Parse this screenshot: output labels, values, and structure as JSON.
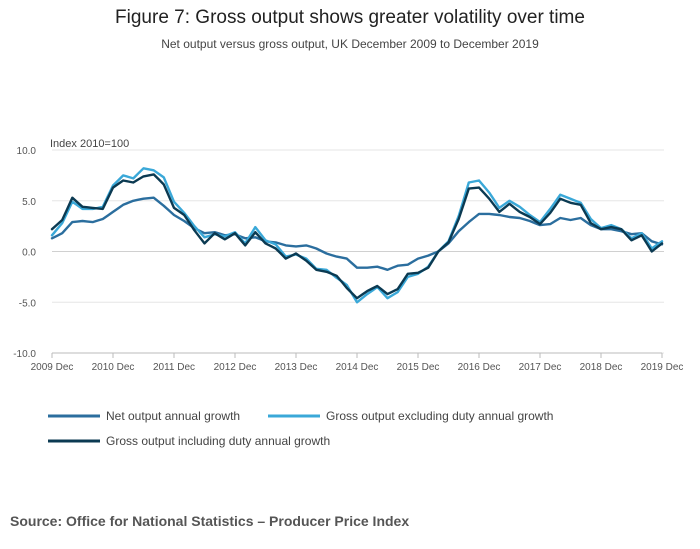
{
  "chart_data": {
    "type": "line",
    "title": "Figure 7: Gross output shows greater volatility over time",
    "subtitle": "Net output versus gross output, UK December 2009 to December 2019",
    "ylabel": "Index 2010=100",
    "ylim": [
      -10,
      10
    ],
    "yticks": [
      "10.0",
      "5.0",
      "0.0",
      "-5.0",
      "-10.0"
    ],
    "ytick_values": [
      10,
      5,
      0,
      -5,
      -10
    ],
    "x_start": "2009 Dec",
    "x_end": "2019 Dec",
    "x_unit": "month",
    "x_ticks": [
      "2009 Dec",
      "2010 Dec",
      "2011 Dec",
      "2012 Dec",
      "2013 Dec",
      "2014 Dec",
      "2015 Dec",
      "2016 Dec",
      "2017 Dec",
      "2018 Dec",
      "2019 Dec"
    ],
    "legend_position": "bottom",
    "series": [
      {
        "name": "Net output annual growth",
        "color": "#2b6e9e",
        "anchors": [
          [
            "2009 Dec",
            1.3
          ],
          [
            "2010 Feb",
            1.8
          ],
          [
            "2010 Apr",
            2.9
          ],
          [
            "2010 Jun",
            3.0
          ],
          [
            "2010 Aug",
            2.9
          ],
          [
            "2010 Oct",
            3.2
          ],
          [
            "2010 Dec",
            3.9
          ],
          [
            "2011 Feb",
            4.6
          ],
          [
            "2011 Apr",
            5.0
          ],
          [
            "2011 Jun",
            5.2
          ],
          [
            "2011 Aug",
            5.3
          ],
          [
            "2011 Oct",
            4.5
          ],
          [
            "2011 Dec",
            3.6
          ],
          [
            "2012 Feb",
            3.0
          ],
          [
            "2012 Apr",
            2.3
          ],
          [
            "2012 Jun",
            1.8
          ],
          [
            "2012 Aug",
            1.9
          ],
          [
            "2012 Oct",
            1.6
          ],
          [
            "2012 Dec",
            1.7
          ],
          [
            "2013 Feb",
            1.3
          ],
          [
            "2013 Apr",
            1.4
          ],
          [
            "2013 Jun",
            1.0
          ],
          [
            "2013 Aug",
            0.9
          ],
          [
            "2013 Oct",
            0.6
          ],
          [
            "2013 Dec",
            0.5
          ],
          [
            "2014 Feb",
            0.6
          ],
          [
            "2014 Apr",
            0.3
          ],
          [
            "2014 Jun",
            -0.2
          ],
          [
            "2014 Aug",
            -0.5
          ],
          [
            "2014 Oct",
            -0.7
          ],
          [
            "2014 Dec",
            -1.6
          ],
          [
            "2015 Feb",
            -1.6
          ],
          [
            "2015 Apr",
            -1.5
          ],
          [
            "2015 Jun",
            -1.8
          ],
          [
            "2015 Aug",
            -1.4
          ],
          [
            "2015 Oct",
            -1.3
          ],
          [
            "2015 Dec",
            -0.7
          ],
          [
            "2016 Feb",
            -0.4
          ],
          [
            "2016 Apr",
            0.0
          ],
          [
            "2016 Jun",
            0.8
          ],
          [
            "2016 Aug",
            2.0
          ],
          [
            "2016 Oct",
            2.9
          ],
          [
            "2016 Dec",
            3.7
          ],
          [
            "2017 Feb",
            3.7
          ],
          [
            "2017 Apr",
            3.6
          ],
          [
            "2017 Jun",
            3.4
          ],
          [
            "2017 Aug",
            3.3
          ],
          [
            "2017 Oct",
            3.0
          ],
          [
            "2017 Dec",
            2.6
          ],
          [
            "2018 Feb",
            2.7
          ],
          [
            "2018 Apr",
            3.3
          ],
          [
            "2018 Jun",
            3.1
          ],
          [
            "2018 Aug",
            3.3
          ],
          [
            "2018 Oct",
            2.6
          ],
          [
            "2018 Dec",
            2.2
          ],
          [
            "2019 Feb",
            2.2
          ],
          [
            "2019 Apr",
            2.0
          ],
          [
            "2019 Jun",
            1.7
          ],
          [
            "2019 Aug",
            1.8
          ],
          [
            "2019 Oct",
            1.0
          ],
          [
            "2019 Dec",
            0.7
          ]
        ]
      },
      {
        "name": "Gross output excluding duty annual growth",
        "color": "#3aa8d8",
        "anchors": [
          [
            "2009 Dec",
            1.6
          ],
          [
            "2010 Feb",
            2.8
          ],
          [
            "2010 Apr",
            4.9
          ],
          [
            "2010 Jun",
            4.2
          ],
          [
            "2010 Aug",
            4.2
          ],
          [
            "2010 Oct",
            4.4
          ],
          [
            "2010 Dec",
            6.5
          ],
          [
            "2011 Feb",
            7.5
          ],
          [
            "2011 Apr",
            7.2
          ],
          [
            "2011 Jun",
            8.2
          ],
          [
            "2011 Aug",
            8.0
          ],
          [
            "2011 Oct",
            7.3
          ],
          [
            "2011 Dec",
            4.9
          ],
          [
            "2012 Feb",
            3.8
          ],
          [
            "2012 Apr",
            2.5
          ],
          [
            "2012 Jun",
            1.4
          ],
          [
            "2012 Aug",
            1.7
          ],
          [
            "2012 Oct",
            1.5
          ],
          [
            "2012 Dec",
            1.9
          ],
          [
            "2013 Feb",
            0.8
          ],
          [
            "2013 Apr",
            2.4
          ],
          [
            "2013 Jun",
            1.1
          ],
          [
            "2013 Aug",
            0.7
          ],
          [
            "2013 Oct",
            -0.5
          ],
          [
            "2013 Dec",
            -0.3
          ],
          [
            "2014 Feb",
            -0.7
          ],
          [
            "2014 Apr",
            -1.7
          ],
          [
            "2014 Jun",
            -1.8
          ],
          [
            "2014 Aug",
            -2.6
          ],
          [
            "2014 Oct",
            -3.3
          ],
          [
            "2014 Dec",
            -5.0
          ],
          [
            "2015 Feb",
            -4.2
          ],
          [
            "2015 Apr",
            -3.5
          ],
          [
            "2015 Jun",
            -4.6
          ],
          [
            "2015 Aug",
            -4.0
          ],
          [
            "2015 Oct",
            -2.5
          ],
          [
            "2015 Dec",
            -2.2
          ],
          [
            "2016 Feb",
            -1.5
          ],
          [
            "2016 Apr",
            0.0
          ],
          [
            "2016 Jun",
            1.0
          ],
          [
            "2016 Aug",
            3.5
          ],
          [
            "2016 Oct",
            6.8
          ],
          [
            "2016 Dec",
            7.0
          ],
          [
            "2017 Feb",
            5.8
          ],
          [
            "2017 Apr",
            4.3
          ],
          [
            "2017 Jun",
            5.0
          ],
          [
            "2017 Aug",
            4.4
          ],
          [
            "2017 Oct",
            3.6
          ],
          [
            "2017 Dec",
            2.9
          ],
          [
            "2018 Feb",
            4.2
          ],
          [
            "2018 Apr",
            5.6
          ],
          [
            "2018 Jun",
            5.2
          ],
          [
            "2018 Aug",
            4.8
          ],
          [
            "2018 Oct",
            3.2
          ],
          [
            "2018 Dec",
            2.3
          ],
          [
            "2019 Feb",
            2.6
          ],
          [
            "2019 Apr",
            2.2
          ],
          [
            "2019 Jun",
            1.3
          ],
          [
            "2019 Aug",
            1.8
          ],
          [
            "2019 Oct",
            0.3
          ],
          [
            "2019 Dec",
            1.0
          ]
        ]
      },
      {
        "name": "Gross output including duty annual growth",
        "color": "#0b3a52",
        "anchors": [
          [
            "2009 Dec",
            2.2
          ],
          [
            "2010 Feb",
            3.1
          ],
          [
            "2010 Apr",
            5.3
          ],
          [
            "2010 Jun",
            4.4
          ],
          [
            "2010 Aug",
            4.3
          ],
          [
            "2010 Oct",
            4.2
          ],
          [
            "2010 Dec",
            6.3
          ],
          [
            "2011 Feb",
            7.0
          ],
          [
            "2011 Apr",
            6.8
          ],
          [
            "2011 Jun",
            7.4
          ],
          [
            "2011 Aug",
            7.6
          ],
          [
            "2011 Oct",
            6.6
          ],
          [
            "2011 Dec",
            4.3
          ],
          [
            "2012 Feb",
            3.6
          ],
          [
            "2012 Apr",
            2.1
          ],
          [
            "2012 Jun",
            0.8
          ],
          [
            "2012 Aug",
            1.8
          ],
          [
            "2012 Oct",
            1.2
          ],
          [
            "2012 Dec",
            1.8
          ],
          [
            "2013 Feb",
            0.6
          ],
          [
            "2013 Apr",
            1.9
          ],
          [
            "2013 Jun",
            0.8
          ],
          [
            "2013 Aug",
            0.3
          ],
          [
            "2013 Oct",
            -0.7
          ],
          [
            "2013 Dec",
            -0.2
          ],
          [
            "2014 Feb",
            -0.9
          ],
          [
            "2014 Apr",
            -1.8
          ],
          [
            "2014 Jun",
            -2.0
          ],
          [
            "2014 Aug",
            -2.4
          ],
          [
            "2014 Oct",
            -3.6
          ],
          [
            "2014 Dec",
            -4.6
          ],
          [
            "2015 Feb",
            -3.9
          ],
          [
            "2015 Apr",
            -3.4
          ],
          [
            "2015 Jun",
            -4.2
          ],
          [
            "2015 Aug",
            -3.7
          ],
          [
            "2015 Oct",
            -2.2
          ],
          [
            "2015 Dec",
            -2.1
          ],
          [
            "2016 Feb",
            -1.6
          ],
          [
            "2016 Apr",
            0.0
          ],
          [
            "2016 Jun",
            0.9
          ],
          [
            "2016 Aug",
            3.2
          ],
          [
            "2016 Oct",
            6.2
          ],
          [
            "2016 Dec",
            6.3
          ],
          [
            "2017 Feb",
            5.2
          ],
          [
            "2017 Apr",
            3.9
          ],
          [
            "2017 Jun",
            4.7
          ],
          [
            "2017 Aug",
            3.9
          ],
          [
            "2017 Oct",
            3.4
          ],
          [
            "2017 Dec",
            2.7
          ],
          [
            "2018 Feb",
            3.8
          ],
          [
            "2018 Apr",
            5.2
          ],
          [
            "2018 Jun",
            4.8
          ],
          [
            "2018 Aug",
            4.6
          ],
          [
            "2018 Oct",
            2.8
          ],
          [
            "2018 Dec",
            2.2
          ],
          [
            "2019 Feb",
            2.4
          ],
          [
            "2019 Apr",
            2.2
          ],
          [
            "2019 Jun",
            1.1
          ],
          [
            "2019 Aug",
            1.6
          ],
          [
            "2019 Oct",
            0.0
          ],
          [
            "2019 Dec",
            0.8
          ]
        ]
      }
    ]
  },
  "source": "Source: Office for National Statistics – Producer Price Index"
}
